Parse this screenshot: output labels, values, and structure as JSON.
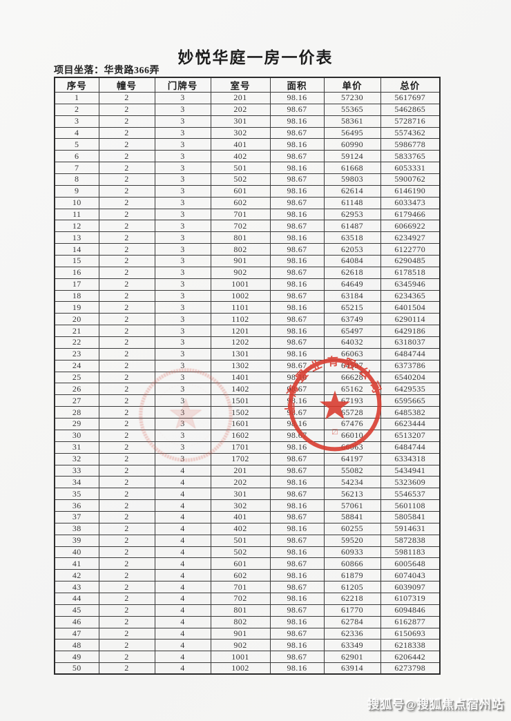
{
  "page": {
    "title": "妙悦华庭一房一价表",
    "location_label": "项目坐落：",
    "location_value": "华贵路366弄",
    "watermark": "搜狐号@搜狐焦点宿州站"
  },
  "table": {
    "headers": [
      "序号",
      "幢号",
      "门牌号",
      "室号",
      "面积",
      "单价",
      "总价"
    ],
    "rows": [
      [
        "1",
        "2",
        "3",
        "201",
        "98.16",
        "57230",
        "5617697"
      ],
      [
        "2",
        "2",
        "3",
        "202",
        "98.67",
        "55365",
        "5462865"
      ],
      [
        "3",
        "2",
        "3",
        "301",
        "98.16",
        "58361",
        "5728716"
      ],
      [
        "4",
        "2",
        "3",
        "302",
        "98.67",
        "56495",
        "5574362"
      ],
      [
        "5",
        "2",
        "3",
        "401",
        "98.16",
        "60990",
        "5986778"
      ],
      [
        "6",
        "2",
        "3",
        "402",
        "98.67",
        "59124",
        "5833765"
      ],
      [
        "7",
        "2",
        "3",
        "501",
        "98.16",
        "61668",
        "6053331"
      ],
      [
        "8",
        "2",
        "3",
        "502",
        "98.67",
        "59803",
        "5900762"
      ],
      [
        "9",
        "2",
        "3",
        "601",
        "98.16",
        "62614",
        "6146190"
      ],
      [
        "10",
        "2",
        "3",
        "602",
        "98.67",
        "61148",
        "6033473"
      ],
      [
        "11",
        "2",
        "3",
        "701",
        "98.16",
        "62953",
        "6179466"
      ],
      [
        "12",
        "2",
        "3",
        "702",
        "98.67",
        "61487",
        "6066922"
      ],
      [
        "13",
        "2",
        "3",
        "801",
        "98.16",
        "63518",
        "6234927"
      ],
      [
        "14",
        "2",
        "3",
        "802",
        "98.67",
        "62053",
        "6122770"
      ],
      [
        "15",
        "2",
        "3",
        "901",
        "98.16",
        "64084",
        "6290485"
      ],
      [
        "16",
        "2",
        "3",
        "902",
        "98.67",
        "62618",
        "6178518"
      ],
      [
        "17",
        "2",
        "3",
        "1001",
        "98.16",
        "64649",
        "6345946"
      ],
      [
        "18",
        "2",
        "3",
        "1002",
        "98.67",
        "63184",
        "6234365"
      ],
      [
        "19",
        "2",
        "3",
        "1101",
        "98.16",
        "65215",
        "6401504"
      ],
      [
        "20",
        "2",
        "3",
        "1102",
        "98.67",
        "63749",
        "6290114"
      ],
      [
        "21",
        "2",
        "3",
        "1201",
        "98.16",
        "65497",
        "6429186"
      ],
      [
        "22",
        "2",
        "3",
        "1202",
        "98.67",
        "64032",
        "6318037"
      ],
      [
        "23",
        "2",
        "3",
        "1301",
        "98.16",
        "66063",
        "6484744"
      ],
      [
        "24",
        "2",
        "3",
        "1302",
        "98.67",
        "64597",
        "6373786"
      ],
      [
        "25",
        "2",
        "3",
        "1401",
        "98.16",
        "66628",
        "6540204"
      ],
      [
        "26",
        "2",
        "3",
        "1402",
        "98.67",
        "65162",
        "6429535"
      ],
      [
        "27",
        "2",
        "3",
        "1501",
        "98.16",
        "67193",
        "6595665"
      ],
      [
        "28",
        "2",
        "3",
        "1502",
        "98.67",
        "65728",
        "6485382"
      ],
      [
        "29",
        "2",
        "3",
        "1601",
        "98.16",
        "67476",
        "6623444"
      ],
      [
        "30",
        "2",
        "3",
        "1602",
        "98.67",
        "66010",
        "6513207"
      ],
      [
        "31",
        "2",
        "3",
        "1701",
        "98.16",
        "66063",
        "6484744"
      ],
      [
        "32",
        "2",
        "3",
        "1702",
        "98.67",
        "64197",
        "6334318"
      ],
      [
        "33",
        "2",
        "4",
        "201",
        "98.67",
        "55082",
        "5434941"
      ],
      [
        "34",
        "2",
        "4",
        "202",
        "98.16",
        "54234",
        "5323609"
      ],
      [
        "35",
        "2",
        "4",
        "301",
        "98.67",
        "56213",
        "5546537"
      ],
      [
        "36",
        "2",
        "4",
        "302",
        "98.16",
        "57061",
        "5601108"
      ],
      [
        "37",
        "2",
        "4",
        "401",
        "98.67",
        "58841",
        "5805841"
      ],
      [
        "38",
        "2",
        "4",
        "402",
        "98.16",
        "60255",
        "5914631"
      ],
      [
        "39",
        "2",
        "4",
        "501",
        "98.67",
        "59520",
        "5872838"
      ],
      [
        "40",
        "2",
        "4",
        "502",
        "98.16",
        "60933",
        "5981183"
      ],
      [
        "41",
        "2",
        "4",
        "601",
        "98.67",
        "60866",
        "6005648"
      ],
      [
        "42",
        "2",
        "4",
        "602",
        "98.16",
        "61879",
        "6074043"
      ],
      [
        "43",
        "2",
        "4",
        "701",
        "98.67",
        "61205",
        "6039097"
      ],
      [
        "44",
        "2",
        "4",
        "702",
        "98.16",
        "62218",
        "6107319"
      ],
      [
        "45",
        "2",
        "4",
        "801",
        "98.67",
        "61770",
        "6094846"
      ],
      [
        "46",
        "2",
        "4",
        "802",
        "98.16",
        "62784",
        "6162877"
      ],
      [
        "47",
        "2",
        "4",
        "901",
        "98.67",
        "62336",
        "6150693"
      ],
      [
        "48",
        "2",
        "4",
        "902",
        "98.16",
        "63349",
        "6218338"
      ],
      [
        "49",
        "2",
        "4",
        "1001",
        "98.67",
        "62901",
        "6206442"
      ],
      [
        "50",
        "2",
        "4",
        "1002",
        "98.16",
        "63914",
        "6273798"
      ]
    ]
  },
  "stamps": {
    "company_seal_text": "上海置业有限公司",
    "seal_color": "#d8392c",
    "faint_seal_color": "#d96a60"
  }
}
